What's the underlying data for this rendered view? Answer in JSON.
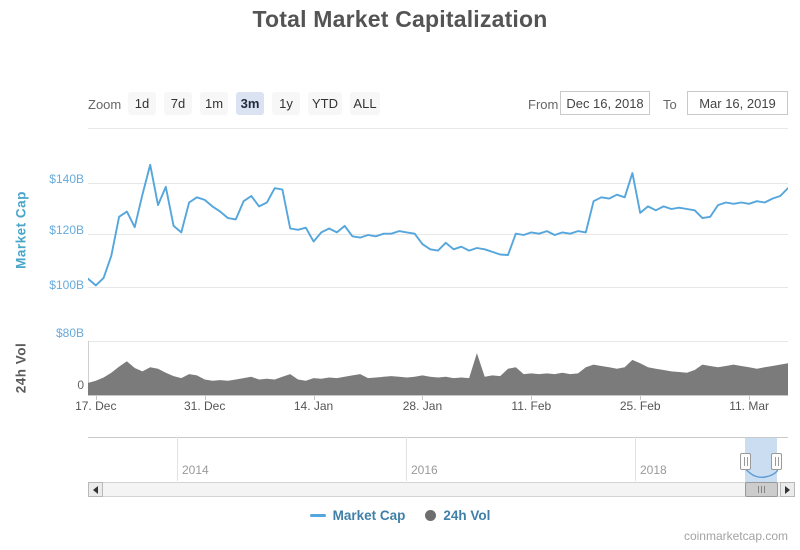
{
  "title": "Total Market Capitalization",
  "toolbar": {
    "zoom_label": "Zoom",
    "zoom_buttons": [
      {
        "label": "1d",
        "selected": false
      },
      {
        "label": "7d",
        "selected": false
      },
      {
        "label": "1m",
        "selected": false
      },
      {
        "label": "3m",
        "selected": true
      },
      {
        "label": "1y",
        "selected": false
      },
      {
        "label": "YTD",
        "selected": false
      },
      {
        "label": "ALL",
        "selected": false
      }
    ],
    "from_label": "From",
    "from_value": "Dec 16, 2018",
    "to_label": "To",
    "to_value": "Mar 16, 2019"
  },
  "chart_data": {
    "type": "line",
    "title": "Total Market Capitalization",
    "x_range": [
      "Dec 16, 2018",
      "Mar 16, 2019"
    ],
    "x_tick_labels": [
      {
        "label": "17. Dec",
        "day": 1
      },
      {
        "label": "31. Dec",
        "day": 15
      },
      {
        "label": "14. Jan",
        "day": 29
      },
      {
        "label": "28. Jan",
        "day": 43
      },
      {
        "label": "11. Feb",
        "day": 57
      },
      {
        "label": "25. Feb",
        "day": 71
      },
      {
        "label": "11. Mar",
        "day": 85
      }
    ],
    "series": [
      {
        "name": "Market Cap",
        "type": "line",
        "color": "#55A6DC",
        "units": "USD billions",
        "axis_title": "Market Cap",
        "ylim": [
          97,
          157
        ],
        "yticks": [
          {
            "label": "$100B",
            "value": 100
          },
          {
            "label": "$120B",
            "value": 120
          },
          {
            "label": "$140B",
            "value": 140
          }
        ],
        "values": [
          103.2,
          100.6,
          103.5,
          112,
          127,
          129,
          123,
          135.5,
          147,
          131.5,
          138.5,
          123.5,
          121,
          132.5,
          134.5,
          133.5,
          131,
          129,
          126.5,
          126,
          133,
          135,
          131,
          132.5,
          138,
          137.5,
          122.5,
          122,
          122.8,
          117.5,
          121,
          122.5,
          121,
          123.5,
          119.5,
          119,
          120,
          119.5,
          120.5,
          120.5,
          121.5,
          121,
          120.5,
          116.5,
          114.5,
          114,
          117,
          114.5,
          115.5,
          114,
          115,
          114.5,
          113.5,
          112.5,
          112.3,
          120.5,
          120,
          121,
          120.5,
          121.5,
          120,
          121,
          120.5,
          121.5,
          121,
          133,
          134.5,
          134,
          135.5,
          134.5,
          143.8,
          128.5,
          131,
          129.5,
          131,
          130,
          130.5,
          130,
          129.5,
          126.5,
          127,
          131.5,
          132.5,
          132,
          132.5,
          132,
          133,
          132.5,
          134,
          135,
          138
        ]
      },
      {
        "name": "24h Vol",
        "type": "area",
        "color": "#7B7B7B",
        "units": "USD billions",
        "axis_title": "24h Vol",
        "ylim": [
          0,
          80
        ],
        "yticks": [
          {
            "label": "0",
            "value": 0
          },
          {
            "label": "$80B",
            "value": 80
          }
        ],
        "values": [
          18,
          21,
          26,
          33,
          42,
          50,
          40,
          35,
          41,
          39,
          33,
          28,
          25,
          31,
          29,
          23,
          21,
          22,
          21,
          23,
          25,
          27,
          23,
          24,
          23,
          27,
          31,
          23,
          21,
          25,
          24,
          26,
          25,
          27,
          29,
          31,
          25,
          26,
          27,
          28,
          27,
          26,
          27,
          29,
          27,
          26,
          27,
          25,
          26,
          25,
          62,
          27,
          29,
          28,
          39,
          41,
          31,
          32,
          31,
          32,
          31,
          33,
          31,
          32,
          41,
          45,
          43,
          41,
          39,
          41,
          52,
          47,
          41,
          39,
          37,
          35,
          34,
          33,
          37,
          45,
          43,
          41,
          43,
          45,
          43,
          41,
          39,
          41,
          43,
          45,
          47
        ]
      }
    ]
  },
  "navigator": {
    "year_labels": [
      {
        "label": "2014"
      },
      {
        "label": "2016"
      },
      {
        "label": "2018"
      }
    ]
  },
  "legend": [
    {
      "label": "Market Cap",
      "marker": "line",
      "color": "#55A6DC"
    },
    {
      "label": "24h Vol",
      "marker": "circle",
      "color": "#6E6E6E"
    }
  ],
  "watermark": "coinmarketcap.com",
  "colors": {
    "line": "#55A6DC",
    "volume_area": "#7B7B7B",
    "axis_tick_blue": "#68ABDC",
    "axis_title_teal": "#4AA6C9",
    "selected_button_bg": "#DBE2F2",
    "legend_text": "#4080A8",
    "nav_selection": "#CBDDF1"
  }
}
